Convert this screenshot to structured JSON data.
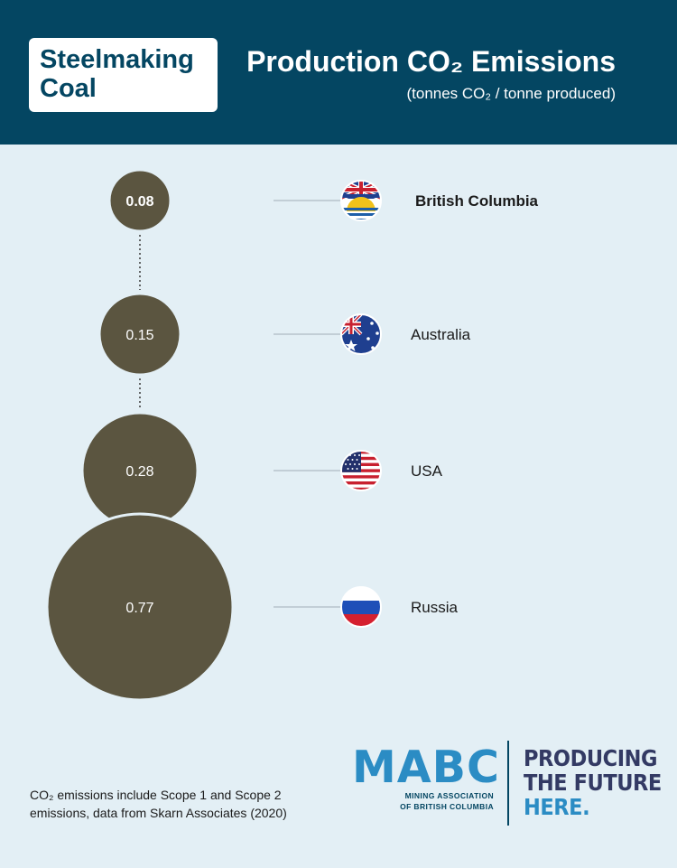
{
  "header": {
    "badge_line1": "Steelmaking",
    "badge_line2": "Coal",
    "title": "Production CO₂ Emissions",
    "subtitle": "(tonnes CO₂ / tonne produced)"
  },
  "colors": {
    "header_bg": "#044662",
    "page_bg": "#e3eff5",
    "bubble": "#5b5540",
    "accent_blue": "#2b8cc4"
  },
  "chart_data": {
    "type": "bubble",
    "title": "Production CO₂ Emissions",
    "unit": "tonnes CO₂ / tonne produced",
    "categories": [
      "British Columbia",
      "Australia",
      "USA",
      "Russia"
    ],
    "values": [
      0.08,
      0.15,
      0.28,
      0.77
    ],
    "value_labels": [
      "0.08",
      "0.15",
      "0.28",
      "0.77"
    ],
    "flags": [
      "british-columbia-flag",
      "australia-flag",
      "usa-flag",
      "russia-flag"
    ],
    "highlight": "British Columbia"
  },
  "footnote": {
    "line1": "CO₂  emissions include Scope 1 and Scope 2",
    "line2": "emissions, data from Skarn Associates (2020)"
  },
  "logo": {
    "mark": "MABC",
    "sub_line1": "MINING ASSOCIATION",
    "sub_line2": "OF BRITISH COLUMBIA"
  },
  "tagline": {
    "line1": "PRODUCING",
    "line2": "THE FUTURE",
    "line3": "HERE."
  }
}
